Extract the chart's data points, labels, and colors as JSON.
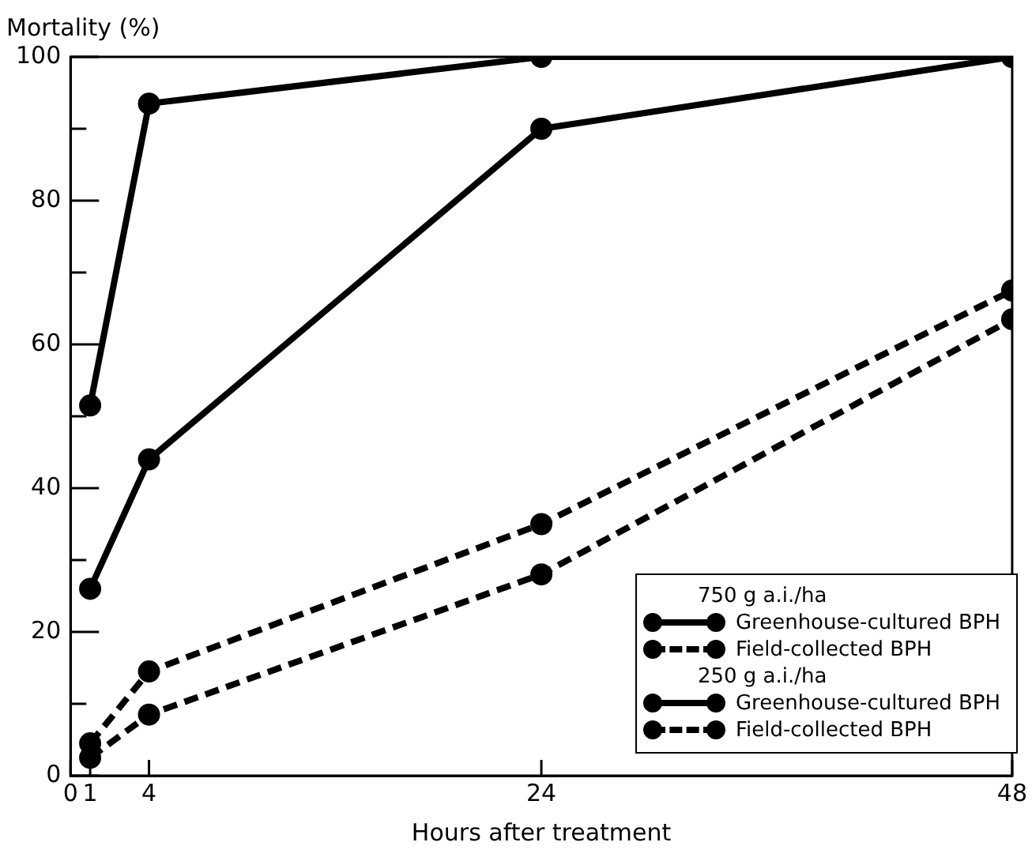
{
  "chart_data": {
    "type": "line",
    "ylabel": "Mortality (%)",
    "xlabel": "Hours after treatment",
    "x": [
      1,
      4,
      24,
      48
    ],
    "xlim": [
      0,
      48
    ],
    "xticks": [
      0,
      1,
      4,
      24,
      48
    ],
    "ylim": [
      0,
      100
    ],
    "yticks": [
      0,
      {
        "value": 10,
        "label": null
      },
      20,
      {
        "value": 30,
        "label": null
      },
      40,
      {
        "value": 50,
        "label": null
      },
      60,
      {
        "value": 70,
        "label": null
      },
      80,
      {
        "value": 90,
        "label": null
      },
      100
    ],
    "series": [
      {
        "name": "Greenhouse-cultured BPH",
        "color": "#000000",
        "line_style": "solid",
        "values": [
          51.5,
          93.5,
          100,
          100
        ]
      },
      {
        "name": "Field-collected BPH",
        "color": "#000000",
        "line_style": "dashed",
        "values": [
          4.5,
          14.5,
          35,
          67.5
        ]
      },
      {
        "name": "Greenhouse-cultured BPH",
        "color": "#000000",
        "line_style": "solid",
        "values": [
          26,
          44,
          90,
          100
        ]
      },
      {
        "name": "Field-collected BPH",
        "color": "#000000",
        "line_style": "dashed",
        "values": [
          2.5,
          8.5,
          28,
          63.5
        ]
      }
    ],
    "annotations": [
      "750 g a.i./ha",
      "250 g a.i./ha"
    ],
    "marker": "circle",
    "grid": false,
    "legend": "bottom right"
  }
}
